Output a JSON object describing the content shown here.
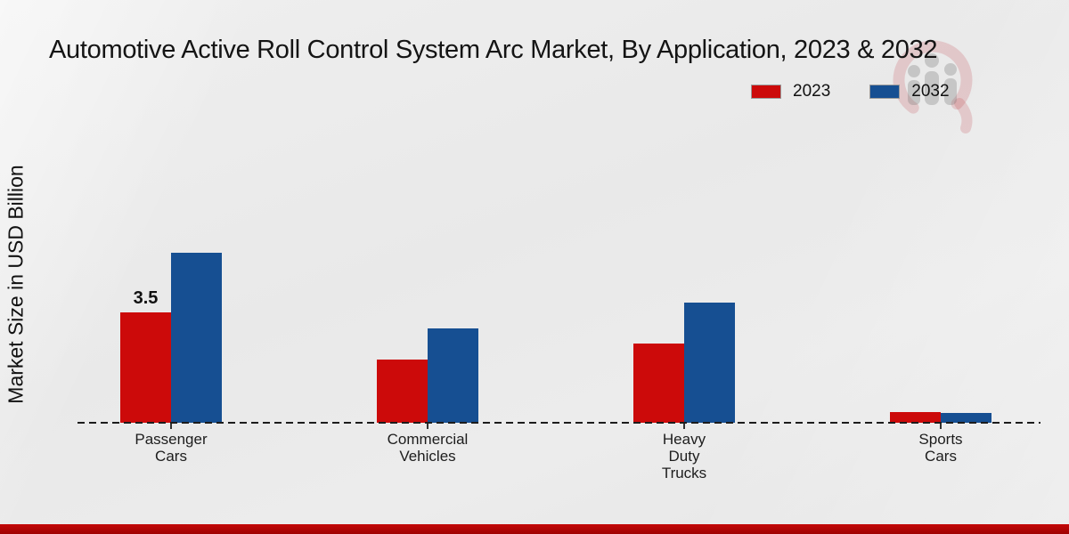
{
  "title": "Automotive Active Roll Control System Arc Market, By Application, 2023 & 2032",
  "y_axis_label": "Market Size in USD Billion",
  "legend": {
    "items": [
      {
        "label": "2023",
        "color": "#cc0a0a"
      },
      {
        "label": "2032",
        "color": "#164f92"
      }
    ]
  },
  "watermark": {
    "icon": "market-research-future-logo-watermark"
  },
  "footer": {
    "stripe_color": "#b30505"
  },
  "chart_data": {
    "type": "bar",
    "title": "Automotive Active Roll Control System Arc Market, By Application, 2023 & 2032",
    "xlabel": "",
    "ylabel": "Market Size in USD Billion",
    "categories": [
      "Passenger Cars",
      "Commercial Vehicles",
      "Heavy Duty Trucks",
      "Sports Cars"
    ],
    "series": [
      {
        "name": "2023",
        "color": "#cc0a0a",
        "values": [
          3.5,
          2.0,
          2.5,
          0.35
        ]
      },
      {
        "name": "2032",
        "color": "#164f92",
        "values": [
          5.4,
          3.0,
          3.8,
          0.3
        ]
      }
    ],
    "bar_value_labels": [
      {
        "series_index": 0,
        "category_index": 0,
        "text": "3.5"
      }
    ],
    "ylim": [
      0,
      6
    ],
    "grid": false,
    "y_axis_ticks_visible": false,
    "baseline_style": "dashed",
    "legend_position": "top-right"
  }
}
